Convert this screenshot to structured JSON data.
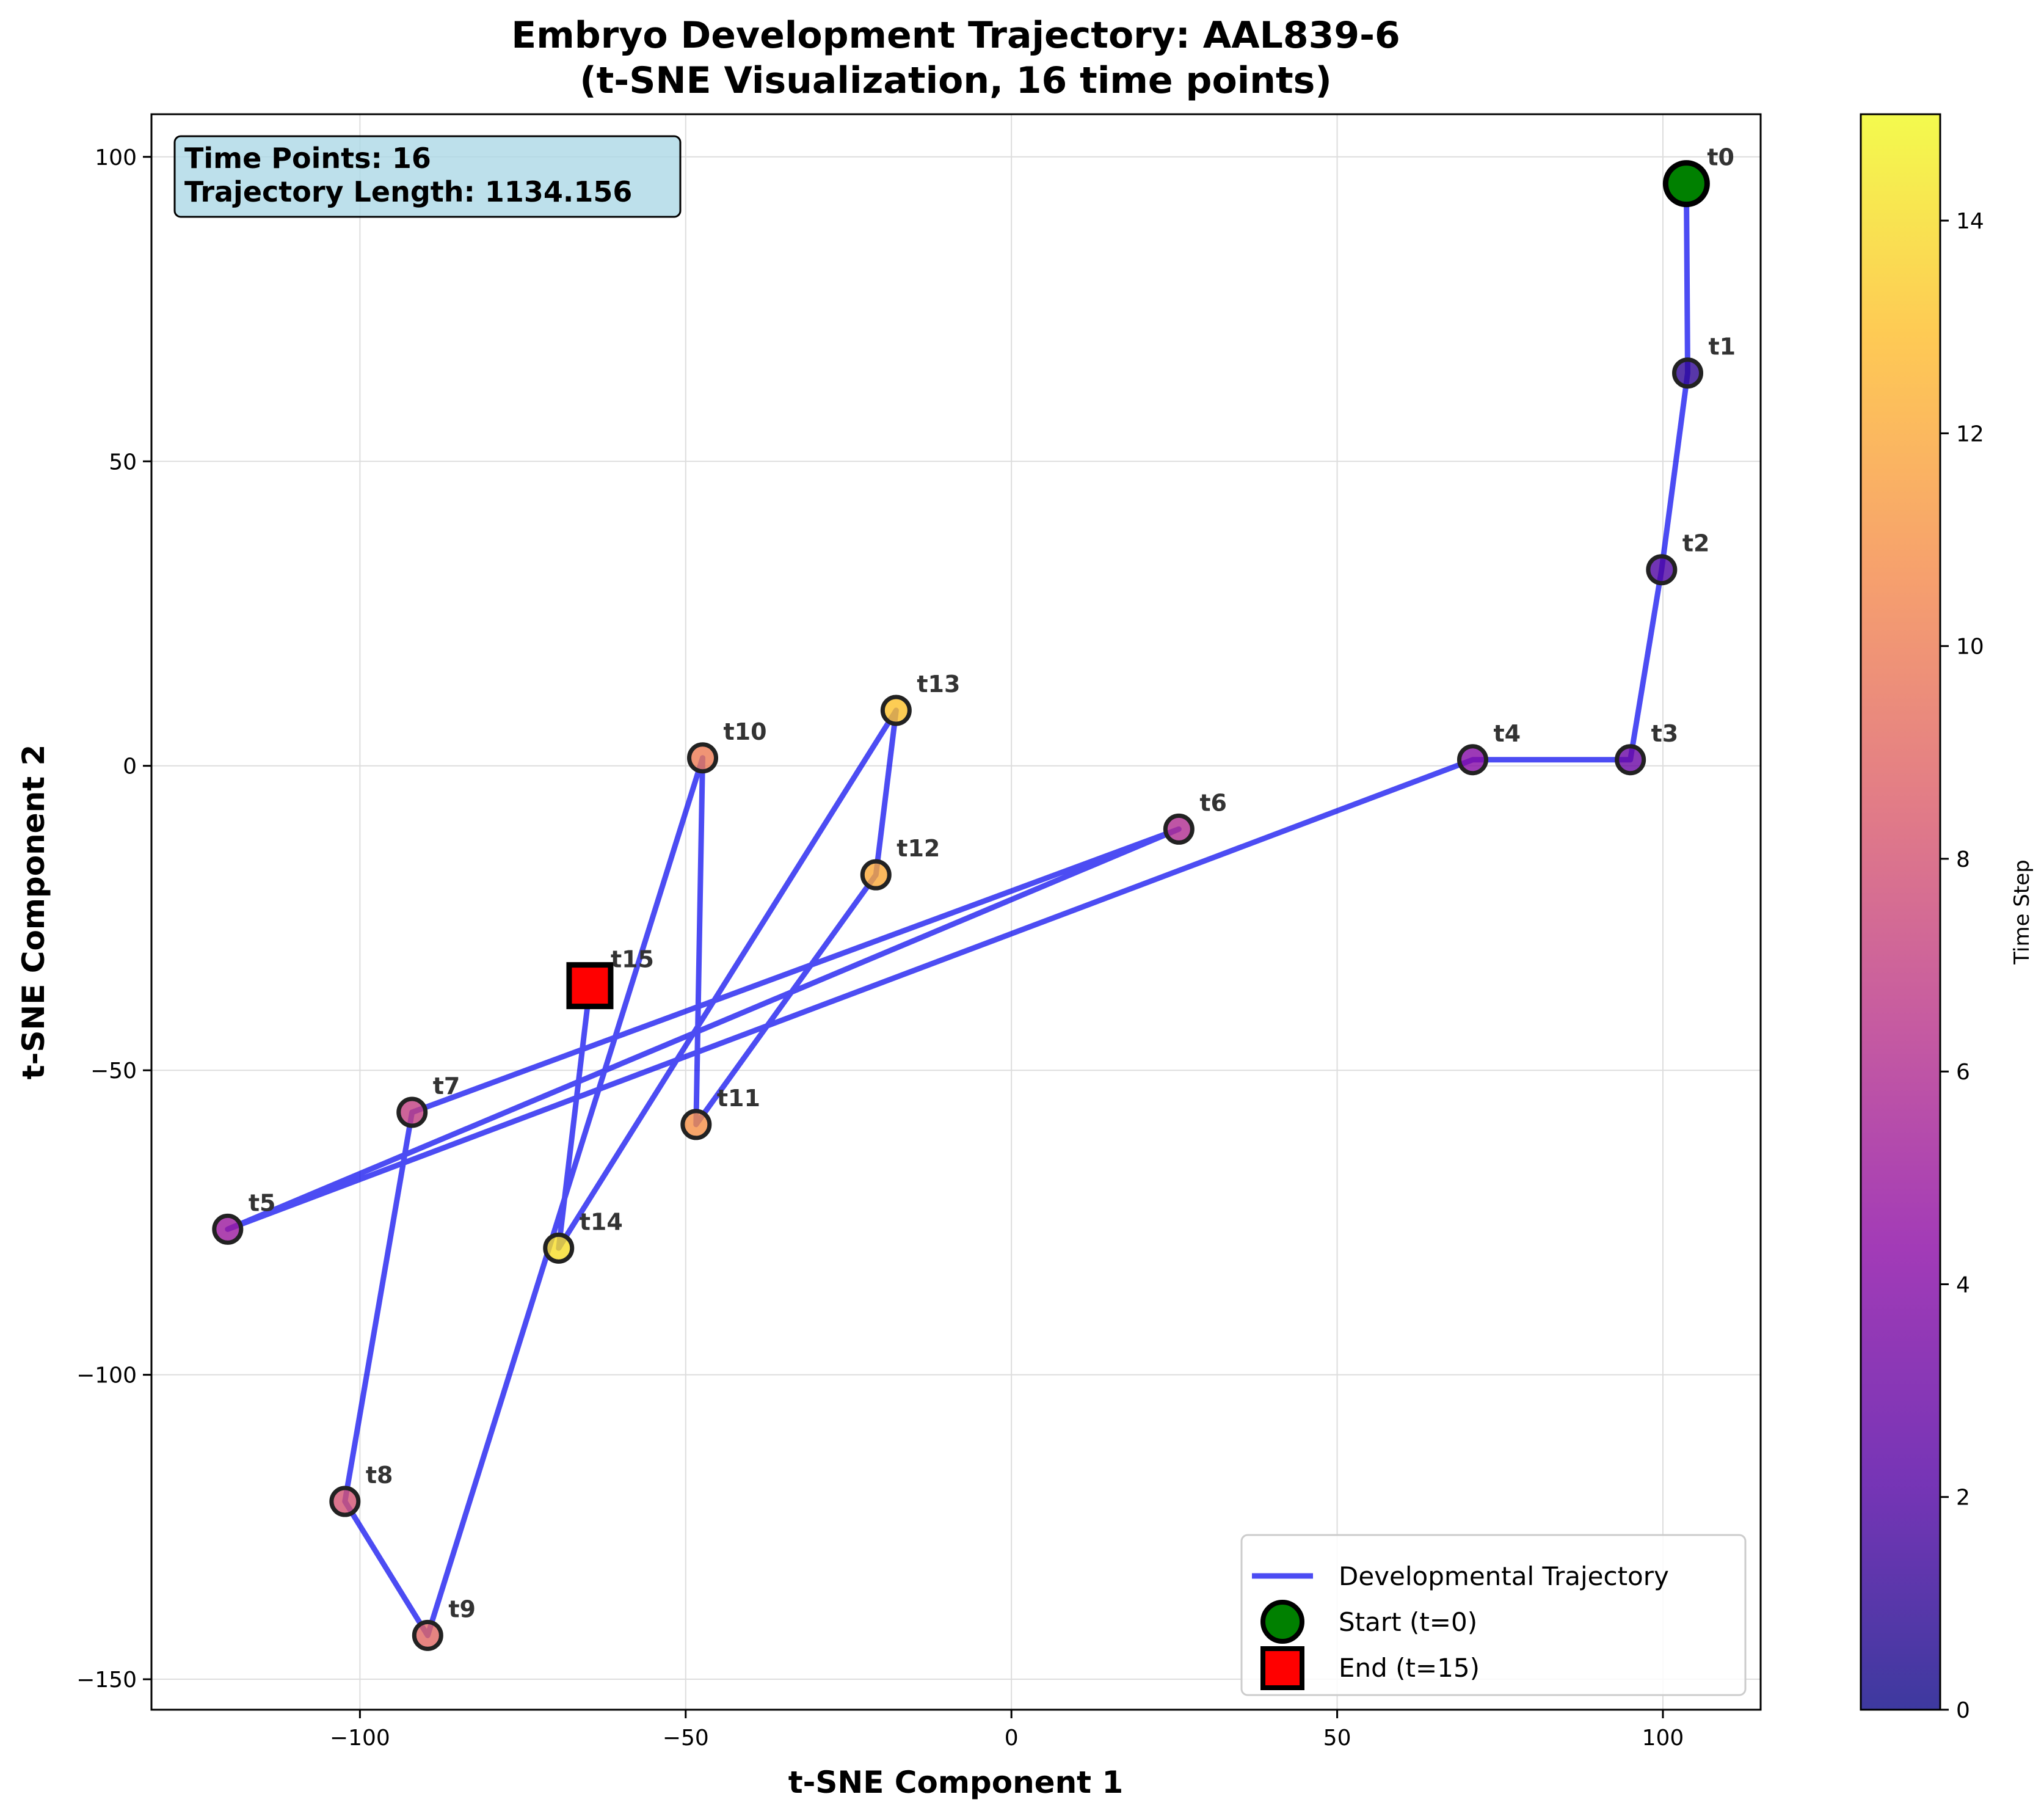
{
  "colors": {
    "trajectory": "#0000ee",
    "start": "#008000",
    "end": "#ff0000",
    "info_box_bg": "#add8e6",
    "grid": "#dddddd",
    "label": "#333333",
    "colormap": "plasma"
  },
  "chart_data": {
    "type": "scatter",
    "title": "Embryo Development Trajectory: AAL839-6",
    "subtitle": "(t-SNE Visualization, 16 time points)",
    "xlabel": "t-SNE Component 1",
    "ylabel": "t-SNE Component 2",
    "xlim": [
      -132,
      115
    ],
    "ylim": [
      -155,
      107
    ],
    "x_ticks": [
      -100,
      -50,
      0,
      50,
      100
    ],
    "y_ticks": [
      -150,
      -100,
      -50,
      0,
      50,
      100
    ],
    "x_tick_labels": [
      "−100",
      "−50",
      "0",
      "50",
      "100"
    ],
    "y_tick_labels": [
      "−150",
      "−100",
      "−50",
      "0",
      "50",
      "100"
    ],
    "grid": true,
    "series": [
      {
        "name": "Developmental Trajectory",
        "labels": [
          "t0",
          "t1",
          "t2",
          "t3",
          "t4",
          "t5",
          "t6",
          "t7",
          "t8",
          "t9",
          "t10",
          "t11",
          "t12",
          "t13",
          "t14",
          "t15"
        ],
        "x": [
          103.6,
          103.8,
          99.8,
          95.0,
          70.8,
          -120.3,
          25.7,
          -92.0,
          -102.3,
          -89.6,
          -47.4,
          -48.4,
          -20.8,
          -17.7,
          -69.5,
          -64.7
        ],
        "y": [
          95.6,
          64.5,
          32.2,
          1.0,
          1.0,
          -76.1,
          -10.4,
          -56.9,
          -120.8,
          -142.8,
          1.3,
          -58.9,
          -17.9,
          9.1,
          -79.2,
          -36.1
        ],
        "time_step": [
          0,
          1,
          2,
          3,
          4,
          5,
          6,
          7,
          8,
          9,
          10,
          11,
          12,
          13,
          14,
          15
        ]
      }
    ],
    "info_box": {
      "line1": "Time Points: 16",
      "line2": "Trajectory Length: 1134.156"
    },
    "legend": {
      "placement": "lower-right",
      "entries": [
        "Developmental Trajectory",
        "Start (t=0)",
        "End (t=15)"
      ]
    },
    "colorbar": {
      "label": "Time Step",
      "min": 0,
      "max": 15,
      "ticks": [
        0,
        2,
        4,
        6,
        8,
        10,
        12,
        14
      ],
      "tick_labels": [
        "0",
        "2",
        "4",
        "6",
        "8",
        "10",
        "12",
        "14"
      ]
    }
  }
}
